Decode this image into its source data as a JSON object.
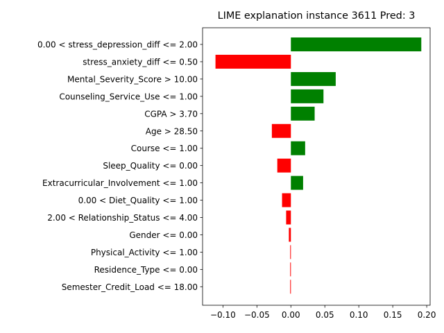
{
  "chart_data": {
    "type": "bar",
    "orientation": "horizontal",
    "title": "LIME explanation instance 3611 Pred: 3",
    "xlabel": "",
    "ylabel": "",
    "xlim": [
      -0.13,
      0.205
    ],
    "grid": false,
    "colors": {
      "positive": "#008000",
      "negative": "#ff0000"
    },
    "categories": [
      "0.00 < stress_depression_diff <= 2.00",
      "stress_anxiety_diff <= 0.50",
      "Mental_Severity_Score > 10.00",
      "Counseling_Service_Use <= 1.00",
      "CGPA > 3.70",
      "Age > 28.50",
      "Course <= 1.00",
      "Sleep_Quality <= 0.00",
      "Extracurricular_Involvement <= 1.00",
      "0.00 < Diet_Quality <= 1.00",
      "2.00 < Relationship_Status <= 4.00",
      "Gender <= 0.00",
      "Physical_Activity <= 1.00",
      "Residence_Type <= 0.00",
      "Semester_Credit_Load <= 18.00"
    ],
    "values": [
      0.192,
      -0.111,
      0.066,
      0.048,
      0.035,
      -0.028,
      0.021,
      -0.02,
      0.018,
      -0.013,
      -0.007,
      -0.003,
      -0.001,
      -0.001,
      -0.001
    ],
    "xticks": [
      -0.1,
      -0.05,
      0.0,
      0.05,
      0.1,
      0.15,
      0.2
    ],
    "xtick_labels": [
      "−0.10",
      "−0.05",
      "0.00",
      "0.05",
      "0.10",
      "0.15",
      "0.20"
    ]
  }
}
